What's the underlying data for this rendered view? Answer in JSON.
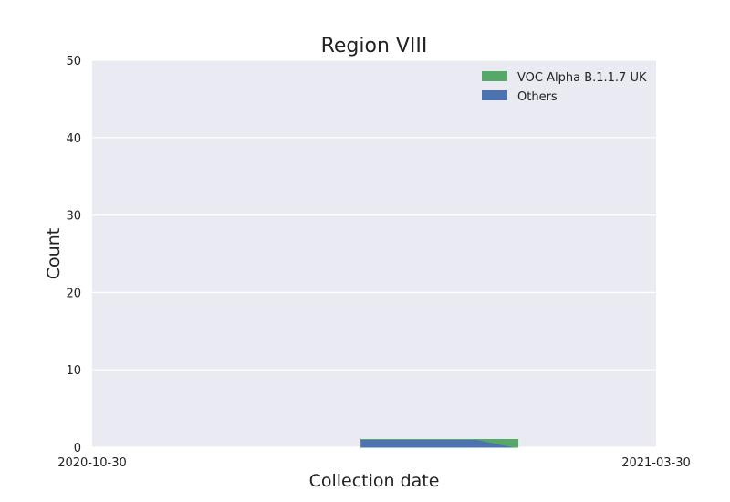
{
  "chart_data": {
    "type": "area",
    "stacked": true,
    "title": "Region VIII",
    "xlabel": "Collection date",
    "ylabel": "Count",
    "x_range": [
      "2020-10-30",
      "2021-03-30"
    ],
    "x_tick_labels": [
      "2020-10-30",
      "2021-03-30"
    ],
    "ylim": [
      0,
      50
    ],
    "y_ticks": [
      0,
      10,
      20,
      30,
      40,
      50
    ],
    "grid": true,
    "legend_position": "top-right",
    "x": [
      "2021-01-10",
      "2021-01-28",
      "2021-02-10",
      "2021-02-20",
      "2021-02-21"
    ],
    "series": [
      {
        "name": "Others",
        "color": "#4c72b0",
        "values": [
          1,
          1,
          1,
          0,
          0
        ]
      },
      {
        "name": "VOC Alpha B.1.1.7 UK",
        "color": "#55a868",
        "values": [
          0,
          0,
          0,
          1,
          1
        ]
      }
    ],
    "legend_order": [
      "VOC Alpha B.1.1.7 UK",
      "Others"
    ],
    "plot_background": "#eaeaf2",
    "grid_color": "#ffffff"
  }
}
